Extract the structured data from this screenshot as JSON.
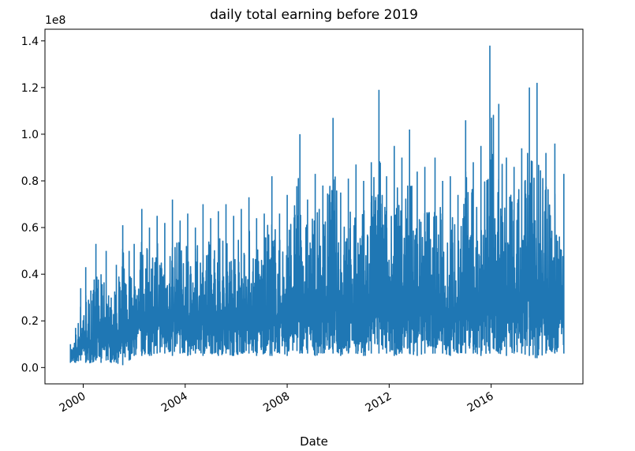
{
  "chart_data": {
    "type": "line",
    "title": "daily total earning before 2019",
    "xlabel": "Date",
    "ylabel": "",
    "y_offset_text": "1e8",
    "grid": false,
    "legend": "none",
    "xlim": [
      1998.5,
      2019.6
    ],
    "ylim": [
      -0.07,
      1.45
    ],
    "y_scale_multiplier": 100000000,
    "x_ticks": [
      2000,
      2004,
      2008,
      2012,
      2016
    ],
    "x_tick_labels": [
      "2000",
      "2004",
      "2008",
      "2012",
      "2016"
    ],
    "y_ticks": [
      0.0,
      0.2,
      0.4,
      0.6,
      0.8,
      1.0,
      1.2,
      1.4
    ],
    "y_tick_labels": [
      "0.0",
      "0.2",
      "0.4",
      "0.6",
      "0.8",
      "1.0",
      "1.2",
      "1.4"
    ],
    "series": [
      {
        "name": "",
        "color": "#1f77b4",
        "x": [
          1999.5,
          1999.7,
          1999.9,
          2000.1,
          2000.3,
          2000.5,
          2000.7,
          2000.9,
          2001.1,
          2001.3,
          2001.55,
          2001.8,
          2002.0,
          2002.3,
          2002.6,
          2002.9,
          2003.2,
          2003.5,
          2003.8,
          2004.1,
          2004.4,
          2004.7,
          2005.0,
          2005.3,
          2005.6,
          2005.9,
          2006.2,
          2006.5,
          2006.8,
          2007.1,
          2007.4,
          2007.7,
          2008.0,
          2008.5,
          2008.8,
          2009.1,
          2009.4,
          2009.8,
          2010.1,
          2010.4,
          2010.7,
          2011.0,
          2011.3,
          2011.6,
          2011.9,
          2012.2,
          2012.5,
          2012.8,
          2013.1,
          2013.4,
          2013.8,
          2014.1,
          2014.4,
          2014.7,
          2015.0,
          2015.3,
          2015.6,
          2015.95,
          2016.3,
          2016.6,
          2016.9,
          2017.2,
          2017.5,
          2017.8,
          2018.15,
          2018.5,
          2018.85
        ],
        "max": [
          0.1,
          0.17,
          0.34,
          0.43,
          0.33,
          0.53,
          0.4,
          0.5,
          0.3,
          0.44,
          0.61,
          0.5,
          0.53,
          0.68,
          0.6,
          0.65,
          0.62,
          0.72,
          0.63,
          0.66,
          0.6,
          0.7,
          0.64,
          0.67,
          0.7,
          0.65,
          0.68,
          0.73,
          0.64,
          0.66,
          0.82,
          0.66,
          0.74,
          1.0,
          0.72,
          0.83,
          0.78,
          1.07,
          0.75,
          0.81,
          0.87,
          0.8,
          0.88,
          1.19,
          0.82,
          0.95,
          0.9,
          1.02,
          0.84,
          0.86,
          0.9,
          0.8,
          0.82,
          0.74,
          1.06,
          0.88,
          0.95,
          1.38,
          1.13,
          0.9,
          0.86,
          0.94,
          1.2,
          1.22,
          0.92,
          0.96,
          0.83
        ],
        "min": [
          0.02,
          0.02,
          0.03,
          0.02,
          0.02,
          0.03,
          0.02,
          0.03,
          0.02,
          0.02,
          0.01,
          0.03,
          0.05,
          0.05,
          0.05,
          0.06,
          0.06,
          0.05,
          0.06,
          0.05,
          0.06,
          0.05,
          0.06,
          0.05,
          0.06,
          0.05,
          0.06,
          0.06,
          0.05,
          0.06,
          0.05,
          0.06,
          0.05,
          0.06,
          0.06,
          0.05,
          0.06,
          0.06,
          0.05,
          0.06,
          0.06,
          0.05,
          0.06,
          0.06,
          0.06,
          0.05,
          0.06,
          0.06,
          0.05,
          0.06,
          0.06,
          0.06,
          0.05,
          0.06,
          0.06,
          0.06,
          0.05,
          0.06,
          0.06,
          0.05,
          0.06,
          0.06,
          0.05,
          0.04,
          0.06,
          0.06,
          0.06
        ]
      }
    ]
  }
}
